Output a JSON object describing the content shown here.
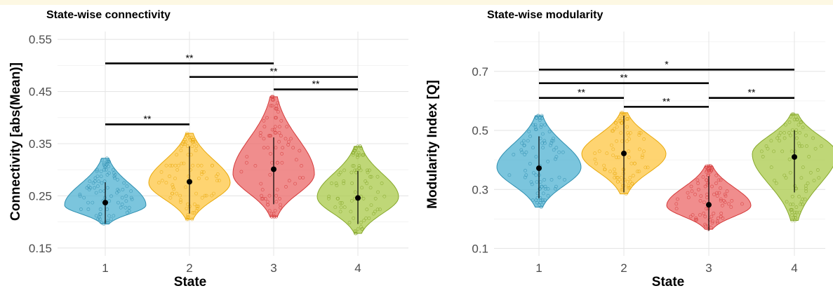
{
  "chart_data": [
    {
      "type": "violin",
      "title": "State-wise connectivity",
      "xlabel": "State",
      "ylabel": "Connectivity [abs(Mean)]",
      "categories": [
        "1",
        "2",
        "3",
        "4"
      ],
      "yticks": [
        "0.55",
        "0.45",
        "0.35",
        "0.25",
        "0.15"
      ],
      "ytick_values": [
        0.55,
        0.45,
        0.35,
        0.25,
        0.15
      ],
      "ylim": [
        0.135,
        0.565
      ],
      "grid": true,
      "colors": [
        "#4fb1d1",
        "#fec541",
        "#eb6767",
        "#a9c94a"
      ],
      "stroke_colors": [
        "#2f8fb0",
        "#e8a90c",
        "#d43a3a",
        "#86a82a"
      ],
      "violins": [
        {
          "min": 0.196,
          "max": 0.322,
          "center": 0.232,
          "mean": 0.237,
          "low": 0.197,
          "high": 0.276
        },
        {
          "min": 0.205,
          "max": 0.37,
          "center": 0.275,
          "mean": 0.277,
          "low": 0.216,
          "high": 0.345
        },
        {
          "min": 0.21,
          "max": 0.44,
          "center": 0.292,
          "mean": 0.301,
          "low": 0.234,
          "high": 0.362
        },
        {
          "min": 0.178,
          "max": 0.345,
          "center": 0.248,
          "mean": 0.246,
          "low": 0.196,
          "high": 0.298
        }
      ],
      "comparisons": [
        {
          "from": "1",
          "to": "2",
          "y": 0.387,
          "label": "**"
        },
        {
          "from": "1",
          "to": "3",
          "y": 0.504,
          "label": "**"
        },
        {
          "from": "2",
          "to": "4",
          "y": 0.478,
          "label": "**"
        },
        {
          "from": "3",
          "to": "4",
          "y": 0.454,
          "label": "**"
        }
      ]
    },
    {
      "type": "violin",
      "title": "State-wise modularity",
      "xlabel": "State",
      "ylabel": "Modularity Index [Q]",
      "categories": [
        "1",
        "2",
        "3",
        "4"
      ],
      "yticks": [
        "0.7",
        "0.5",
        "0.3",
        "0.1"
      ],
      "ytick_values": [
        0.7,
        0.5,
        0.3,
        0.1
      ],
      "ylim": [
        0.075,
        0.835
      ],
      "grid": true,
      "colors": [
        "#4fb1d1",
        "#fec541",
        "#eb6767",
        "#a9c94a"
      ],
      "stroke_colors": [
        "#2f8fb0",
        "#e8a90c",
        "#d43a3a",
        "#86a82a"
      ],
      "violins": [
        {
          "min": 0.24,
          "max": 0.55,
          "center": 0.375,
          "mean": 0.372,
          "low": 0.27,
          "high": 0.48
        },
        {
          "min": 0.285,
          "max": 0.56,
          "center": 0.42,
          "mean": 0.422,
          "low": 0.29,
          "high": 0.55
        },
        {
          "min": 0.165,
          "max": 0.38,
          "center": 0.245,
          "mean": 0.248,
          "low": 0.16,
          "high": 0.345
        },
        {
          "min": 0.195,
          "max": 0.555,
          "center": 0.42,
          "mean": 0.41,
          "low": 0.29,
          "high": 0.5
        }
      ],
      "comparisons": [
        {
          "from": "1",
          "to": "4",
          "y": 0.706,
          "label": "*"
        },
        {
          "from": "1",
          "to": "3",
          "y": 0.66,
          "label": "**"
        },
        {
          "from": "1",
          "to": "2",
          "y": 0.61,
          "label": "**"
        },
        {
          "from": "2",
          "to": "3",
          "y": 0.58,
          "label": "**"
        },
        {
          "from": "3",
          "to": "4",
          "y": 0.61,
          "label": "**"
        }
      ]
    }
  ]
}
